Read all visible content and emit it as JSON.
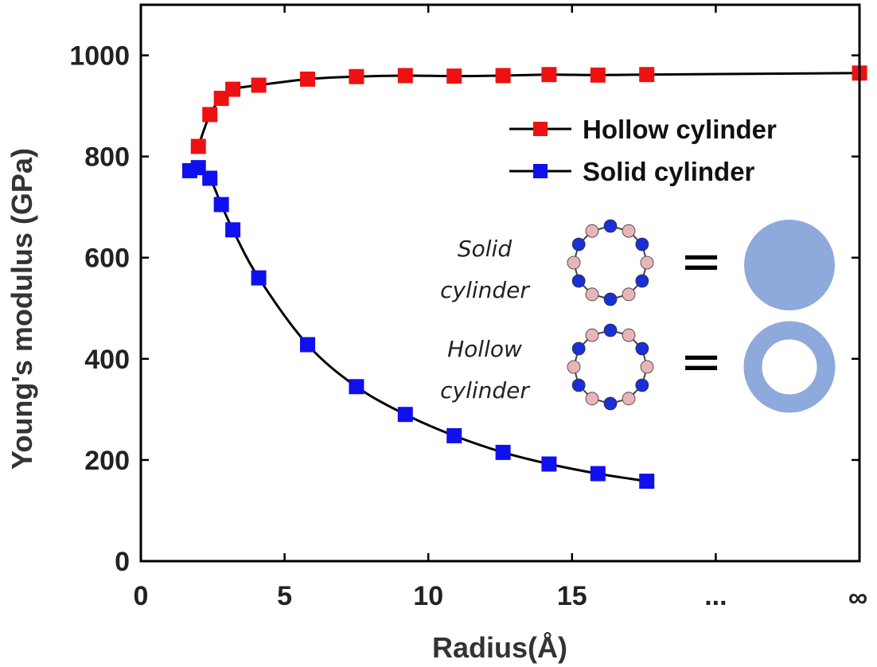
{
  "chart_data": {
    "type": "line",
    "xlabel": "Radius(Å)",
    "ylabel": "Young's modulus (GPa)",
    "xlim": [
      0,
      25
    ],
    "ylim": [
      0,
      1100
    ],
    "x_ticks": [
      {
        "value": 0,
        "label": "0"
      },
      {
        "value": 5,
        "label": "5"
      },
      {
        "value": 10,
        "label": "10"
      },
      {
        "value": 15,
        "label": "15"
      },
      {
        "value": 20,
        "label": "..."
      },
      {
        "value": 25,
        "label": "∞"
      }
    ],
    "y_ticks": [
      {
        "value": 0,
        "label": "0"
      },
      {
        "value": 200,
        "label": "200"
      },
      {
        "value": 400,
        "label": "400"
      },
      {
        "value": 600,
        "label": "600"
      },
      {
        "value": 800,
        "label": "800"
      },
      {
        "value": 1000,
        "label": "1000"
      }
    ],
    "legend_position": "top-right",
    "series": [
      {
        "name": "Hollow cylinder",
        "color": "#ee1111",
        "marker": "square",
        "x": [
          2.0,
          2.4,
          2.8,
          3.2,
          4.1,
          5.8,
          7.5,
          9.2,
          10.9,
          12.6,
          14.2,
          15.9,
          17.6,
          25
        ],
        "y": [
          820,
          883,
          915,
          933,
          941,
          953,
          958,
          960,
          959,
          960,
          962,
          961,
          962,
          965
        ]
      },
      {
        "name": "Solid cylinder",
        "color": "#1010ee",
        "marker": "square",
        "x": [
          1.7,
          2.0,
          2.4,
          2.8,
          3.2,
          4.1,
          5.8,
          7.5,
          9.2,
          10.9,
          12.6,
          14.2,
          15.9,
          17.6
        ],
        "y": [
          772,
          778,
          757,
          705,
          655,
          560,
          428,
          345,
          290,
          248,
          215,
          192,
          173,
          158
        ]
      }
    ],
    "inset": {
      "rows": [
        {
          "label_line1": "Solid",
          "label_line2": "cylinder",
          "equals": "=",
          "shape": "filled-circle"
        },
        {
          "label_line1": "Hollow",
          "label_line2": "cylinder",
          "equals": "=",
          "shape": "ring"
        }
      ],
      "shape_color": "#8ea9db",
      "atom_colors": [
        "#1a2fd6",
        "#e8b4b8"
      ]
    }
  }
}
